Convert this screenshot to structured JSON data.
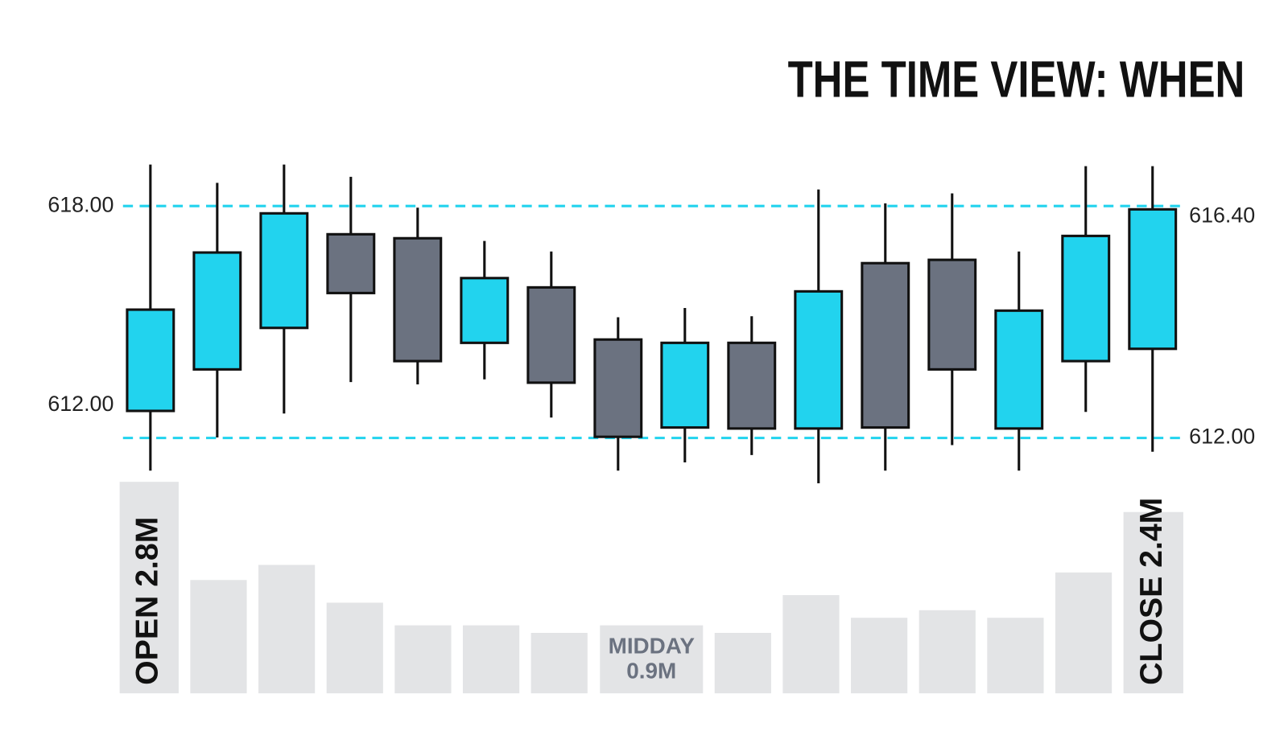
{
  "chart_data": [
    {
      "type": "candlestick",
      "title": "THE TIME VIEW: WHEN",
      "open": [
        611.83,
        613.08,
        614.33,
        617.15,
        617.03,
        613.88,
        615.55,
        613.98,
        611.33,
        613.88,
        611.3,
        616.28,
        616.38,
        611.3,
        613.33,
        613.7
      ],
      "high": [
        619.25,
        618.7,
        619.25,
        618.88,
        617.95,
        616.95,
        616.63,
        614.65,
        614.93,
        614.68,
        618.5,
        618.08,
        618.38,
        616.63,
        619.2,
        619.2
      ],
      "low": [
        610.03,
        611.03,
        611.75,
        612.7,
        612.63,
        612.78,
        611.63,
        610.03,
        610.28,
        610.5,
        609.65,
        610.03,
        610.8,
        610.03,
        611.8,
        610.6
      ],
      "close": [
        614.88,
        616.6,
        617.78,
        615.38,
        613.33,
        615.83,
        612.68,
        611.05,
        613.88,
        611.3,
        615.43,
        611.33,
        613.08,
        614.85,
        617.1,
        617.9
      ],
      "up_color": "#22d3ee",
      "down_color": "#6b7280",
      "ylim": [
        609.5,
        619.5
      ],
      "yticks": [
        {
          "value": 612,
          "label": "612.00"
        },
        {
          "value": 618,
          "label": "618.00"
        }
      ],
      "y2lim": [
        611.0,
        617.6
      ],
      "y2ticks": [
        {
          "value": 612,
          "label": "612.00"
        },
        {
          "value": 616.4,
          "label": "616.40"
        }
      ],
      "reference_lines": [
        {
          "value": 618,
          "axis": "y"
        },
        {
          "value": 612,
          "axis": "y2"
        }
      ],
      "reference_color": "#22d3ee"
    },
    {
      "type": "bar",
      "values": [
        2.8,
        1.5,
        1.7,
        1.2,
        0.9,
        0.9,
        0.8,
        0.9,
        0.8,
        1.3,
        1.0,
        1.1,
        1.0,
        1.6,
        2.4
      ],
      "value_labels": [
        "OPEN 2.8M",
        null,
        null,
        null,
        null,
        null,
        null,
        "MIDDAY 0.9M",
        null,
        null,
        null,
        null,
        null,
        null,
        "CLOSE 2.4M"
      ],
      "color": "#e3e4e6",
      "ylim": [
        0,
        3
      ]
    }
  ]
}
